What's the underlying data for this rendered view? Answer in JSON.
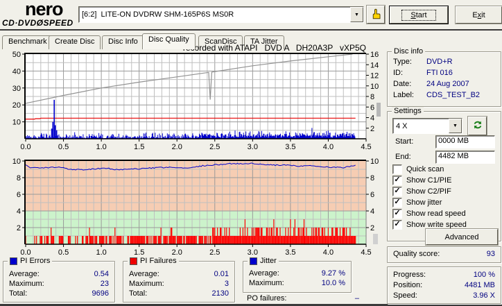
{
  "header": {
    "logo_line1": "nero",
    "logo_line2": "CD·DVDØSPEED",
    "drive": "[6:2]  LITE-ON DVDRW SHM-165P6S MS0R",
    "start_button": {
      "label": "Start",
      "underline": 0
    },
    "exit_button": {
      "label": "Exit",
      "underline": 1
    }
  },
  "tabs": [
    {
      "label": "Benchmark"
    },
    {
      "label": "Create Disc"
    },
    {
      "label": "Disc Info"
    },
    {
      "label": "Disc Quality",
      "active": true
    },
    {
      "label": "ScanDisc"
    },
    {
      "label": "TA Jitter"
    }
  ],
  "disc_info": {
    "title": "Disc info",
    "rows": [
      {
        "label": "Type:",
        "value": "DVD+R"
      },
      {
        "label": "ID:",
        "value": "FTI 016"
      },
      {
        "label": "Date:",
        "value": "24 Aug 2007"
      },
      {
        "label": "Label:",
        "value": "CDS_TEST_B2"
      }
    ]
  },
  "settings": {
    "title": "Settings",
    "speed_selected": "4 X",
    "start_label": "Start:",
    "start_value": "0000 MB",
    "end_label": "End:",
    "end_value": "4482 MB",
    "checkboxes": [
      {
        "label": "Quick scan",
        "checked": false
      },
      {
        "label": "Show C1/PIE",
        "checked": true
      },
      {
        "label": "Show C2/PIF",
        "checked": true
      },
      {
        "label": "Show jitter",
        "checked": true
      },
      {
        "label": "Show read speed",
        "checked": true
      },
      {
        "label": "Show write speed",
        "checked": true
      }
    ],
    "advanced_button": "Advanced"
  },
  "quality": {
    "label": "Quality score:",
    "value": "93"
  },
  "progress_panel": {
    "rows": [
      {
        "label": "Progress:",
        "value": "100 %"
      },
      {
        "label": "Position:",
        "value": "4481 MB"
      },
      {
        "label": "Speed:",
        "value": "3.96 X"
      }
    ]
  },
  "stats_panels": [
    {
      "title": "PI Errors",
      "color": "#0000cc",
      "rows": [
        {
          "label": "Average:",
          "value": "0.54"
        },
        {
          "label": "Maximum:",
          "value": "23"
        },
        {
          "label": "Total:",
          "value": "9696"
        }
      ]
    },
    {
      "title": "PI Failures",
      "color": "#ee0000",
      "rows": [
        {
          "label": "Average:",
          "value": "0.01"
        },
        {
          "label": "Maximum:",
          "value": "3"
        },
        {
          "label": "Total:",
          "value": "2130"
        }
      ]
    },
    {
      "title": "Jitter",
      "color": "#0000cc",
      "rows": [
        {
          "label": "Average:",
          "value": "9.27 %"
        },
        {
          "label": "Maximum:",
          "value": "10.0 %"
        }
      ]
    }
  ],
  "po_failures": {
    "label": "PO failures:",
    "value": "–"
  },
  "chart_data": [
    {
      "type": "line",
      "title": "recorded with ATAPI   DVD A   DH20A3P   vXP5Q",
      "x_range": [
        0,
        4.5
      ],
      "x_tick_step": 0.5,
      "x_data_end": 4.36,
      "y_left": {
        "range": [
          0,
          50
        ],
        "ticks": [
          10,
          20,
          30,
          40,
          50
        ],
        "grid_step": 5
      },
      "y_right": {
        "range": [
          0,
          16
        ],
        "ticks": [
          2,
          4,
          6,
          8,
          10,
          12,
          14,
          16
        ]
      },
      "grid": true,
      "series": [
        {
          "name": "write-speed",
          "color": "#e80000",
          "axis": "right",
          "style": "line",
          "points": [
            [
              0,
              3.72
            ],
            [
              0.12,
              3.72
            ],
            [
              0.13,
              3.8
            ],
            [
              0.19,
              3.8
            ],
            [
              0.2,
              3.9
            ],
            [
              4.36,
              3.9
            ]
          ]
        },
        {
          "name": "read-speed",
          "color": "#929292",
          "axis": "right",
          "style": "line",
          "points": [
            [
              0,
              6.7
            ],
            [
              0.5,
              8.2
            ],
            [
              1.0,
              9.6
            ],
            [
              1.5,
              10.7
            ],
            [
              2.0,
              11.7
            ],
            [
              2.42,
              12.55
            ],
            [
              2.44,
              7.4
            ],
            [
              2.46,
              12.6
            ],
            [
              3.0,
              13.8
            ],
            [
              3.5,
              14.7
            ],
            [
              4.0,
              15.5
            ],
            [
              4.32,
              16.0
            ]
          ]
        },
        {
          "name": "pi-errors",
          "color": "#0000cc",
          "axis": "left",
          "style": "spike-noise",
          "noise": {
            "step": 0.008,
            "base_min": 0.3,
            "base_max": 4.2,
            "late_boost_from": 2.3,
            "late_boost": 1.6
          },
          "spikes": [
            [
              0.345,
              6
            ],
            [
              0.36,
              10
            ],
            [
              0.378,
              23
            ],
            [
              0.392,
              8
            ],
            [
              0.41,
              5
            ]
          ],
          "average": 0.54,
          "maximum": 23,
          "total": 9696
        }
      ]
    },
    {
      "type": "line+bar",
      "x_range": [
        0,
        4.5
      ],
      "x_tick_step": 0.5,
      "x_data_end": 4.36,
      "y_left": {
        "range": [
          0,
          10
        ],
        "ticks": [
          2,
          4,
          6,
          8,
          10
        ],
        "grid_step": 1
      },
      "y_right": {
        "range": [
          0,
          10
        ],
        "ticks": [
          2,
          4,
          6,
          8,
          10
        ]
      },
      "grid": true,
      "zones": [
        {
          "from": 4,
          "to": 10,
          "color": "#f6cdb3"
        },
        {
          "from": 0,
          "to": 4,
          "color": "#ccf3cb"
        }
      ],
      "series": [
        {
          "name": "pi-failures",
          "color": "#ff0000",
          "axis": "left",
          "style": "bars",
          "bars": {
            "step": 0.012,
            "segments": [
              {
                "from": 0,
                "to": 0.7,
                "p": 0.38,
                "p2": 0.03
              },
              {
                "from": 0.7,
                "to": 1.5,
                "p": 0.55,
                "p2": 0.08
              },
              {
                "from": 1.5,
                "to": 2.5,
                "p": 0.8,
                "p2": 0.12
              },
              {
                "from": 2.5,
                "to": 4.36,
                "p": 1.0,
                "p2": 0.3
              }
            ],
            "threes": [
              2.9,
              3.28,
              3.5,
              3.56,
              3.68
            ]
          },
          "average": 0.01,
          "maximum": 3,
          "total": 2130
        },
        {
          "name": "jitter",
          "color": "#0000cc",
          "axis": "left",
          "style": "line-noisy",
          "noise_amp": 0.07,
          "points": [
            [
              0,
              9.5
            ],
            [
              0.05,
              9.2
            ],
            [
              0.15,
              9.15
            ],
            [
              0.3,
              9.2
            ],
            [
              0.45,
              9.25
            ],
            [
              0.6,
              9.0
            ],
            [
              0.75,
              8.95
            ],
            [
              0.9,
              9.05
            ],
            [
              1.05,
              9.15
            ],
            [
              1.2,
              8.95
            ],
            [
              1.35,
              9.0
            ],
            [
              1.5,
              9.05
            ],
            [
              1.65,
              9.15
            ],
            [
              1.8,
              9.2
            ],
            [
              1.95,
              9.25
            ],
            [
              2.1,
              9.1
            ],
            [
              2.25,
              9.3
            ],
            [
              2.4,
              9.5
            ],
            [
              2.55,
              9.55
            ],
            [
              2.7,
              9.7
            ],
            [
              2.85,
              9.65
            ],
            [
              3.0,
              9.7
            ],
            [
              3.15,
              9.55
            ],
            [
              3.3,
              9.5
            ],
            [
              3.45,
              9.5
            ],
            [
              3.6,
              9.4
            ],
            [
              3.75,
              9.45
            ],
            [
              3.9,
              9.3
            ],
            [
              4.05,
              9.25
            ],
            [
              4.2,
              9.2
            ],
            [
              4.36,
              9.45
            ]
          ],
          "average_pct": 9.27,
          "maximum_pct": 10.0
        }
      ],
      "noise_seed": 1337
    }
  ]
}
